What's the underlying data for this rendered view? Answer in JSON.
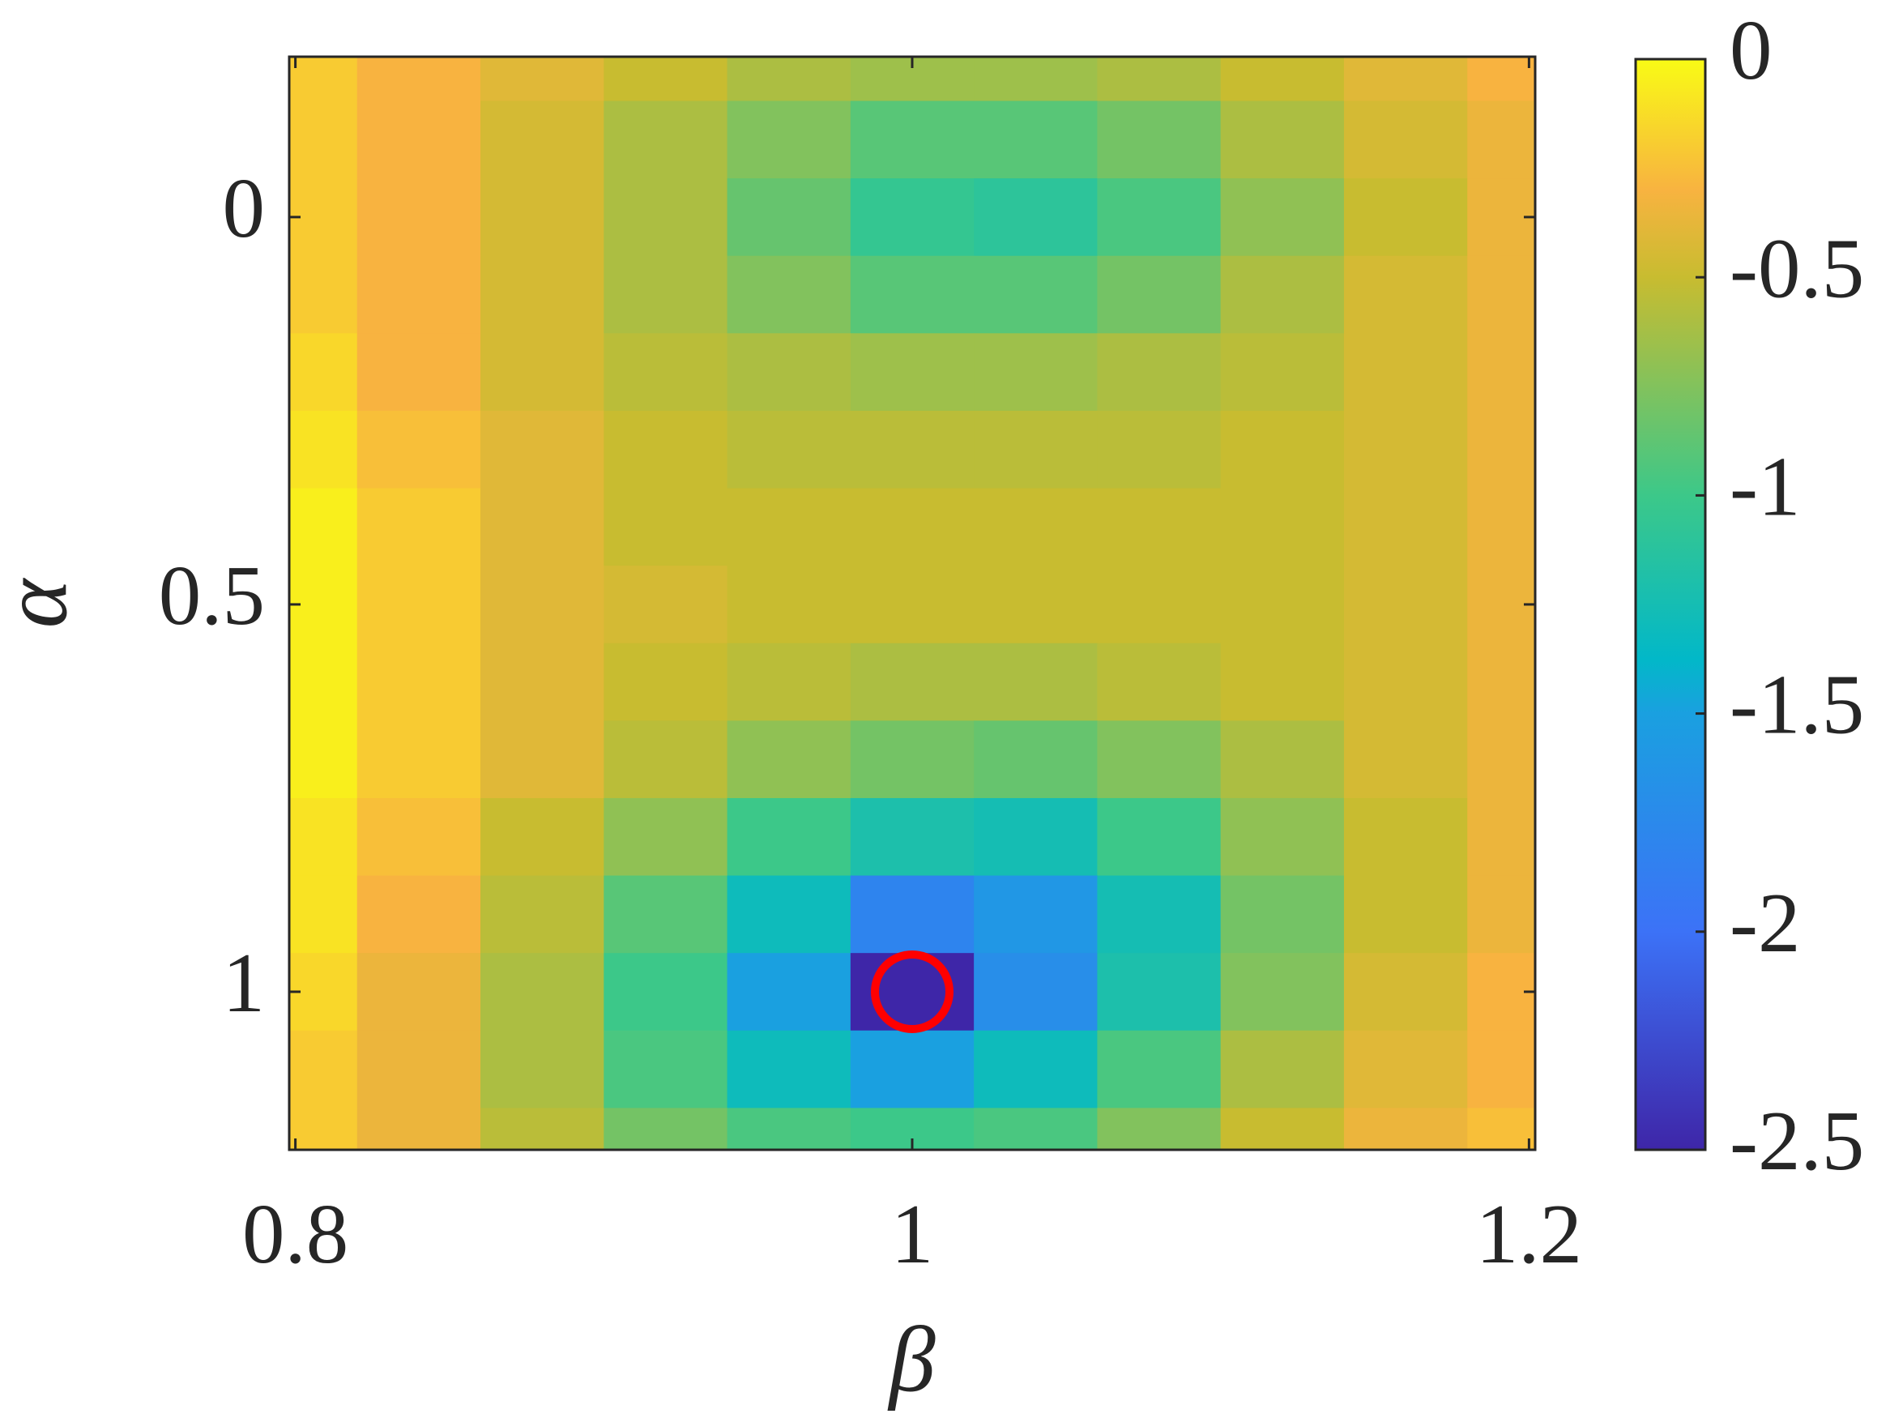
{
  "chart_data": {
    "type": "heatmap",
    "xlabel": "β",
    "ylabel": "α",
    "x": [
      0.8,
      0.84,
      0.88,
      0.92,
      0.96,
      1.0,
      1.04,
      1.08,
      1.12,
      1.16,
      1.2
    ],
    "y": [
      -0.2,
      -0.1,
      0,
      0.1,
      0.2,
      0.3,
      0.4,
      0.5,
      0.6,
      0.7,
      0.8,
      0.9,
      1.0,
      1.1,
      1.2
    ],
    "z": [
      [
        -0.2,
        -0.3,
        -0.4,
        -0.5,
        -0.6,
        -0.65,
        -0.65,
        -0.6,
        -0.5,
        -0.4,
        -0.3
      ],
      [
        -0.2,
        -0.3,
        -0.45,
        -0.6,
        -0.75,
        -0.9,
        -0.9,
        -0.8,
        -0.6,
        -0.45,
        -0.35
      ],
      [
        -0.2,
        -0.3,
        -0.45,
        -0.6,
        -0.85,
        -1.05,
        -1.1,
        -0.95,
        -0.7,
        -0.5,
        -0.35
      ],
      [
        -0.2,
        -0.3,
        -0.45,
        -0.6,
        -0.75,
        -0.9,
        -0.9,
        -0.8,
        -0.6,
        -0.45,
        -0.35
      ],
      [
        -0.15,
        -0.3,
        -0.45,
        -0.55,
        -0.6,
        -0.65,
        -0.65,
        -0.6,
        -0.55,
        -0.45,
        -0.35
      ],
      [
        -0.1,
        -0.25,
        -0.4,
        -0.5,
        -0.55,
        -0.55,
        -0.55,
        -0.55,
        -0.5,
        -0.45,
        -0.35
      ],
      [
        -0.05,
        -0.2,
        -0.4,
        -0.5,
        -0.5,
        -0.5,
        -0.5,
        -0.5,
        -0.5,
        -0.45,
        -0.35
      ],
      [
        -0.05,
        -0.2,
        -0.4,
        -0.45,
        -0.5,
        -0.5,
        -0.5,
        -0.5,
        -0.5,
        -0.45,
        -0.35
      ],
      [
        -0.05,
        -0.2,
        -0.4,
        -0.5,
        -0.55,
        -0.6,
        -0.6,
        -0.55,
        -0.5,
        -0.45,
        -0.35
      ],
      [
        -0.05,
        -0.2,
        -0.4,
        -0.55,
        -0.7,
        -0.8,
        -0.85,
        -0.75,
        -0.6,
        -0.45,
        -0.35
      ],
      [
        -0.1,
        -0.25,
        -0.5,
        -0.7,
        -1.0,
        -1.2,
        -1.25,
        -1.0,
        -0.7,
        -0.5,
        -0.35
      ],
      [
        -0.1,
        -0.3,
        -0.55,
        -0.9,
        -1.3,
        -1.8,
        -1.6,
        -1.25,
        -0.8,
        -0.5,
        -0.35
      ],
      [
        -0.15,
        -0.35,
        -0.6,
        -1.0,
        -1.5,
        -2.5,
        -1.7,
        -1.2,
        -0.75,
        -0.45,
        -0.3
      ],
      [
        -0.2,
        -0.35,
        -0.6,
        -0.95,
        -1.3,
        -1.5,
        -1.3,
        -0.95,
        -0.6,
        -0.4,
        -0.3
      ],
      [
        -0.2,
        -0.35,
        -0.55,
        -0.8,
        -0.95,
        -1.0,
        -0.95,
        -0.75,
        -0.5,
        -0.35,
        -0.25
      ]
    ],
    "xlim": [
      0.798,
      1.202
    ],
    "ylim": [
      1.204,
      -0.207
    ],
    "xticks": [
      0.8,
      1,
      1.2
    ],
    "yticks": [
      0,
      0.5,
      1
    ],
    "clim": [
      -2.5,
      0
    ],
    "cticks": [
      0,
      -0.5,
      -1,
      -1.5,
      -2,
      -2.5
    ],
    "colormap": [
      {
        "at": 0,
        "color": "#3e26a8"
      },
      {
        "at": 0.2,
        "color": "#3c72f7"
      },
      {
        "at": 0.4,
        "color": "#1aa0e0"
      },
      {
        "at": 0.45,
        "color": "#02b8c8"
      },
      {
        "at": 0.6,
        "color": "#3cc889"
      },
      {
        "at": 0.8,
        "color": "#c8bc30"
      },
      {
        "at": 0.88,
        "color": "#f8b340"
      },
      {
        "at": 1,
        "color": "#f9fb15"
      }
    ],
    "marker": {
      "x": 1,
      "y": 1,
      "color": "#ff0000"
    }
  }
}
